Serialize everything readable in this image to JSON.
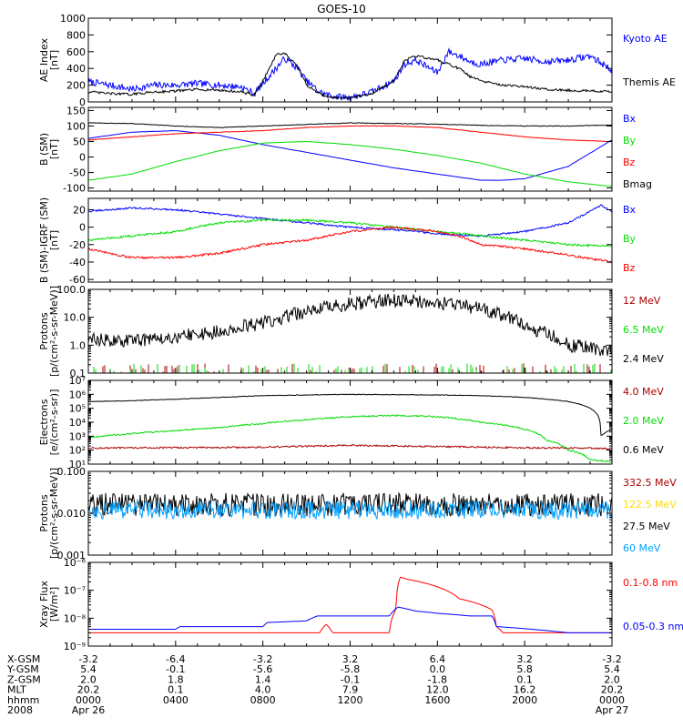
{
  "chart_data": {
    "type": "line",
    "title": "GOES-10",
    "colors": {
      "black": "#000000",
      "blue": "#0000ff",
      "red": "#ff0000",
      "green": "#00dd00",
      "darkred": "#aa0000",
      "yellow": "#ffdd00",
      "cyan": "#00a0ff"
    },
    "x_axis": {
      "unit": "hours",
      "xlim": [
        0,
        24
      ],
      "major_ticks": [
        0,
        4,
        8,
        12,
        16,
        20,
        24
      ],
      "rows": [
        {
          "name": "X-GSM",
          "values": [
            "-3.2",
            "-6.4",
            "-3.2",
            "3.2",
            "6.4",
            "3.2",
            "-3.2"
          ]
        },
        {
          "name": "Y-GSM",
          "values": [
            "5.4",
            "-0.1",
            "-5.6",
            "-5.8",
            "0.0",
            "5.8",
            "5.4"
          ]
        },
        {
          "name": "Z-GSM",
          "values": [
            "2.0",
            "1.8",
            "1.4",
            "-0.1",
            "-1.8",
            "0.1",
            "2.0"
          ]
        },
        {
          "name": "MLT",
          "values": [
            "20.2",
            "0.1",
            "4.0",
            "7.9",
            "12.0",
            "16.2",
            "20.2"
          ]
        },
        {
          "name": "hhmm",
          "values": [
            "0000",
            "0400",
            "0800",
            "1200",
            "1600",
            "2000",
            "0000"
          ]
        },
        {
          "name": "2008",
          "values": [
            "Apr 26",
            "",
            "",
            "",
            "",
            "",
            "Apr 27"
          ]
        }
      ]
    },
    "panels": [
      {
        "ylabel": "AE Index\n[nT]",
        "scale": "linear",
        "ylim": [
          0,
          1000
        ],
        "yticks": [
          "0",
          "200",
          "400",
          "600",
          "800",
          "1000"
        ],
        "ytick_values": [
          0,
          200,
          400,
          600,
          800,
          1000
        ],
        "series": [
          {
            "name": "Kyoto AE",
            "color": "blue",
            "noise": 40,
            "x": [
              0,
              1,
              2,
              3,
              4,
              5,
              6,
              7,
              7.6,
              8,
              8.6,
              9,
              9.6,
              10,
              10.6,
              11,
              11.5,
              12,
              13,
              14,
              14.5,
              15,
              16,
              16.5,
              17,
              17.5,
              18,
              19,
              20,
              21,
              22,
              23,
              24
            ],
            "y": [
              240,
              200,
              150,
              200,
              200,
              220,
              200,
              180,
              100,
              220,
              400,
              520,
              400,
              250,
              120,
              80,
              60,
              50,
              120,
              250,
              450,
              500,
              350,
              600,
              550,
              480,
              450,
              500,
              520,
              480,
              500,
              550,
              380
            ]
          },
          {
            "name": "Themis AE",
            "color": "black",
            "noise": 15,
            "x": [
              0,
              1,
              2,
              3,
              4,
              5,
              6,
              7,
              7.6,
              8,
              8.6,
              9,
              9.6,
              10,
              10.6,
              11,
              11.5,
              12,
              13,
              14,
              14.5,
              15,
              16,
              16.5,
              17,
              17.5,
              18,
              19,
              20,
              21,
              22,
              23,
              24
            ],
            "y": [
              120,
              100,
              90,
              120,
              130,
              150,
              140,
              120,
              80,
              250,
              560,
              580,
              420,
              200,
              100,
              60,
              50,
              50,
              100,
              250,
              500,
              550,
              500,
              450,
              400,
              300,
              250,
              200,
              180,
              150,
              140,
              130,
              120
            ]
          }
        ]
      },
      {
        "ylabel": "B (SM)\n[nT]",
        "scale": "linear",
        "ylim": [
          -110,
          160
        ],
        "yticks": [
          "-100",
          "-50",
          "0",
          "50",
          "100",
          "150"
        ],
        "ytick_values": [
          -100,
          -50,
          0,
          50,
          100,
          150
        ],
        "series": [
          {
            "name": "Bx",
            "color": "blue",
            "noise": 0.5,
            "x": [
              0,
              2,
              4,
              6,
              8,
              10,
              12,
              14,
              16,
              18,
              19,
              20,
              22,
              24
            ],
            "y": [
              60,
              80,
              85,
              70,
              40,
              15,
              -10,
              -35,
              -55,
              -75,
              -75,
              -70,
              -30,
              55
            ]
          },
          {
            "name": "By",
            "color": "green",
            "noise": 0.5,
            "x": [
              0,
              2,
              4,
              6,
              8,
              10,
              12,
              14,
              16,
              18,
              20,
              22,
              24
            ],
            "y": [
              -75,
              -55,
              -15,
              20,
              45,
              50,
              40,
              25,
              5,
              -20,
              -55,
              -80,
              -95
            ]
          },
          {
            "name": "Bz",
            "color": "red",
            "noise": 0.8,
            "x": [
              0,
              2,
              4,
              6,
              8,
              10,
              12,
              14,
              16,
              18,
              20,
              22,
              24
            ],
            "y": [
              55,
              65,
              75,
              80,
              85,
              95,
              100,
              100,
              95,
              80,
              65,
              55,
              50
            ]
          },
          {
            "name": "Bmag",
            "color": "black",
            "noise": 1,
            "x": [
              0,
              2,
              4,
              6,
              8,
              10,
              12,
              14,
              16,
              18,
              20,
              22,
              24
            ],
            "y": [
              110,
              108,
              100,
              95,
              100,
              105,
              110,
              108,
              106,
              102,
              100,
              100,
              103
            ]
          }
        ]
      },
      {
        "ylabel": "B (SM)-IGRF (SM)\n[nT]",
        "scale": "linear",
        "ylim": [
          -63,
          33
        ],
        "yticks": [
          "-60",
          "-40",
          "-20",
          "0",
          "20"
        ],
        "ytick_values": [
          -60,
          -40,
          -20,
          0,
          20
        ],
        "series": [
          {
            "name": "Bx",
            "color": "blue",
            "noise": 1,
            "x": [
              0,
              2,
              4,
              6,
              8,
              10,
              12,
              14,
              15,
              16,
              18,
              20,
              22,
              23.5,
              24
            ],
            "y": [
              18,
              22,
              20,
              15,
              10,
              5,
              0,
              -3,
              -5,
              -8,
              -10,
              -5,
              5,
              25,
              18
            ]
          },
          {
            "name": "By",
            "color": "green",
            "noise": 1.2,
            "x": [
              0,
              2,
              4,
              6,
              8,
              10,
              12,
              14,
              16,
              18,
              20,
              22,
              24
            ],
            "y": [
              -15,
              -10,
              -5,
              5,
              8,
              8,
              5,
              0,
              -5,
              -10,
              -15,
              -20,
              -22
            ]
          },
          {
            "name": "Bz",
            "color": "red",
            "noise": 1.2,
            "x": [
              0,
              2,
              4,
              6,
              8,
              10,
              12,
              14,
              16,
              17,
              18,
              19,
              20,
              22,
              24
            ],
            "y": [
              -25,
              -35,
              -35,
              -30,
              -20,
              -15,
              -5,
              0,
              -5,
              -10,
              -20,
              -22,
              -25,
              -32,
              -40
            ]
          }
        ]
      },
      {
        "ylabel": "Protons\n[p/(cm²-s-sr-MeV)]",
        "scale": "log",
        "ylim": [
          0.1,
          100
        ],
        "yticks": [
          "0.1",
          "1.0",
          "10.0",
          "100.0"
        ],
        "ytick_values": [
          0.1,
          1,
          10,
          100
        ],
        "series": [
          {
            "name": "12 MeV",
            "color": "darkred",
            "spiky": true,
            "x": [
              0,
              24
            ],
            "y": [
              0.1,
              0.1
            ]
          },
          {
            "name": "6.5 MeV",
            "color": "green",
            "spiky": true,
            "x": [
              0,
              24
            ],
            "y": [
              0.1,
              0.1
            ]
          },
          {
            "name": "2.4 MeV",
            "color": "black",
            "noise_log": 0.25,
            "x": [
              0,
              2,
              4,
              6,
              8,
              10,
              12,
              14,
              16,
              18,
              20,
              22,
              24
            ],
            "y": [
              1.5,
              1.5,
              2,
              3,
              6,
              15,
              30,
              40,
              35,
              20,
              4,
              1,
              0.6
            ]
          }
        ]
      },
      {
        "ylabel": "Electrons\n[e/(cm²-s-sr)]",
        "scale": "log",
        "ylim": [
          10,
          10000000
        ],
        "yticks": [
          "10¹",
          "10²",
          "10³",
          "10⁴",
          "10⁵",
          "10⁶",
          "10⁷"
        ],
        "ytick_values": [
          10,
          100,
          1000,
          10000,
          100000,
          1000000,
          10000000
        ],
        "series": [
          {
            "name": "4.0 MeV",
            "color": "darkred",
            "noise_log": 0.06,
            "x": [
              0,
              4,
              8,
              12,
              16,
              20,
              24
            ],
            "y": [
              140,
              150,
              160,
              220,
              180,
              150,
              130
            ]
          },
          {
            "name": "2.0 MeV",
            "color": "green",
            "noise_log": 0.05,
            "x": [
              0,
              2,
              4,
              6,
              8,
              10,
              12,
              14,
              16,
              18,
              20,
              21,
              22,
              23,
              24
            ],
            "y": [
              800,
              1500,
              2500,
              4000,
              8000,
              15000,
              25000,
              30000,
              25000,
              10000,
              3000,
              500,
              100,
              20,
              15
            ]
          },
          {
            "name": "0.6 MeV",
            "color": "black",
            "noise_log": 0.02,
            "x": [
              0,
              2,
              4,
              6,
              8,
              10,
              12,
              14,
              16,
              18,
              20,
              22,
              23.5,
              24
            ],
            "y": [
              300000,
              350000,
              450000,
              600000,
              800000,
              900000,
              1000000,
              950000,
              900000,
              800000,
              600000,
              300000,
              1000,
              3000
            ]
          }
        ]
      },
      {
        "ylabel": "Protons\n[p/(cm²-s-sr-MeV)]",
        "scale": "log",
        "ylim": [
          0.001,
          0.1
        ],
        "yticks": [
          "0.001",
          "0.010",
          "0.100"
        ],
        "ytick_values": [
          0.001,
          0.01,
          0.1
        ],
        "series": [
          {
            "name": "332.5 MeV",
            "color": "darkred",
            "x": [],
            "y": []
          },
          {
            "name": "122.5 MeV",
            "color": "yellow",
            "x": [],
            "y": []
          },
          {
            "name": "27.5 MeV",
            "color": "black",
            "noise_log": 0.28,
            "x": [
              0,
              24
            ],
            "y": [
              0.016,
              0.016
            ]
          },
          {
            "name": "60 MeV",
            "color": "cyan",
            "noise_log": 0.22,
            "x": [
              0,
              24
            ],
            "y": [
              0.012,
              0.012
            ]
          }
        ]
      },
      {
        "ylabel": "Xray Flux\n[W/m²]",
        "scale": "log",
        "ylim": [
          1e-09,
          1e-06
        ],
        "yticks": [
          "10⁻⁹",
          "10⁻⁸",
          "10⁻⁷",
          "10⁻⁶"
        ],
        "ytick_values": [
          1e-09,
          1e-08,
          1e-07,
          1e-06
        ],
        "series": [
          {
            "name": "0.1-0.8 nm",
            "color": "red",
            "x": [
              0,
              10,
              10.6,
              10.9,
              11.2,
              11.5,
              13.8,
              14.1,
              14.3,
              14.6,
              17,
              18.5,
              18.7,
              19,
              24
            ],
            "y": [
              3e-09,
              3e-09,
              3e-09,
              6e-09,
              3e-09,
              3e-09,
              3e-09,
              2e-08,
              3e-07,
              2.5e-07,
              5e-08,
              2e-08,
              5e-09,
              3e-09,
              3e-09
            ]
          },
          {
            "name": "0.05-0.3 nm",
            "color": "blue",
            "x": [
              0,
              4,
              4.2,
              8,
              8.2,
              10,
              10.5,
              13.8,
              14.2,
              15,
              16,
              17.5,
              18.5,
              18.7,
              22,
              24
            ],
            "y": [
              4e-09,
              4e-09,
              5e-09,
              5e-09,
              7e-09,
              8e-09,
              1.2e-08,
              1.2e-08,
              2.5e-08,
              1.8e-08,
              1.5e-08,
              1.2e-08,
              1.2e-08,
              5e-09,
              3e-09,
              3e-09
            ]
          }
        ]
      }
    ]
  }
}
